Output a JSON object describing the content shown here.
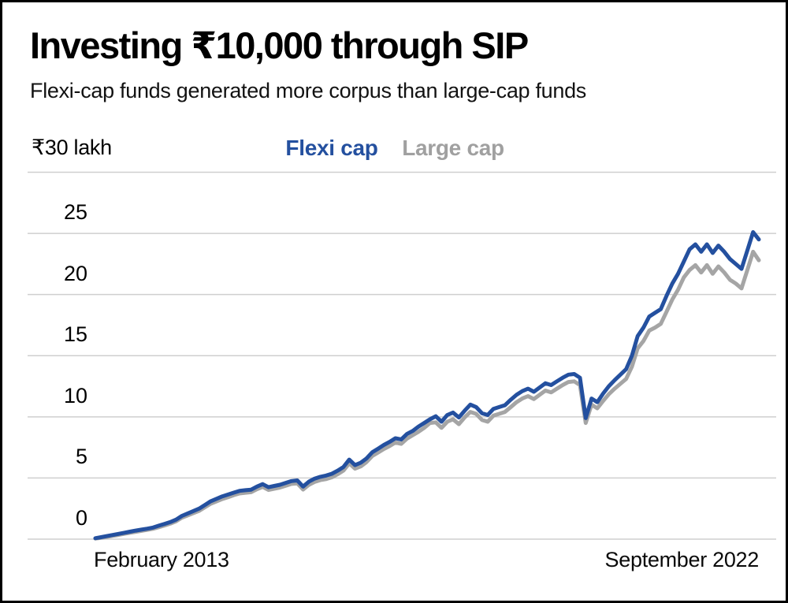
{
  "header": {
    "title": "Investing ₹10,000 through SIP",
    "subtitle": "Flexi-cap funds generated more corpus than large-cap funds"
  },
  "y_axis": {
    "max_label": "₹30 lakh",
    "tick_labels": [
      "25",
      "20",
      "15",
      "10",
      "5",
      "0"
    ]
  },
  "x_axis": {
    "start_label": "February 2013",
    "end_label": "September 2022"
  },
  "legend": {
    "items": [
      {
        "label": "Flexi cap",
        "color": "#24509f"
      },
      {
        "label": "Large cap",
        "color": "#a0a0a0"
      }
    ]
  },
  "colors": {
    "flexi_line": "#24509f",
    "large_line": "#a5a5a5",
    "grid": "#cfcfcf",
    "text": "#000000",
    "border": "#000000"
  },
  "chart_data": {
    "type": "line",
    "title": "Investing ₹10,000 through SIP",
    "subtitle": "Flexi-cap funds generated more corpus than large-cap funds",
    "x_unit": "month",
    "x_range": [
      "2013-02",
      "2022-09"
    ],
    "x_tick_labels": [
      "February 2013",
      "September 2022"
    ],
    "ylabel": "₹ lakh",
    "ylim": [
      0,
      30
    ],
    "y_ticks": [
      0,
      5,
      10,
      15,
      20,
      25,
      30
    ],
    "grid": "horizontal",
    "legend_position": "top",
    "series": [
      {
        "name": "Flexi cap",
        "color": "#24509f",
        "values": [
          0.08,
          0.16,
          0.25,
          0.34,
          0.43,
          0.52,
          0.61,
          0.7,
          0.78,
          0.86,
          0.95,
          1.1,
          1.25,
          1.4,
          1.6,
          1.9,
          2.1,
          2.3,
          2.5,
          2.8,
          3.1,
          3.3,
          3.5,
          3.65,
          3.8,
          3.95,
          4.0,
          4.05,
          4.3,
          4.5,
          4.25,
          4.35,
          4.45,
          4.6,
          4.75,
          4.8,
          4.3,
          4.7,
          4.95,
          5.1,
          5.2,
          5.35,
          5.6,
          5.9,
          6.5,
          6.05,
          6.25,
          6.6,
          7.1,
          7.4,
          7.7,
          7.95,
          8.25,
          8.15,
          8.6,
          8.85,
          9.2,
          9.5,
          9.8,
          10.05,
          9.6,
          10.15,
          10.35,
          9.95,
          10.5,
          11.0,
          10.8,
          10.3,
          10.15,
          10.65,
          10.8,
          10.95,
          11.4,
          11.8,
          12.1,
          12.3,
          12.05,
          12.4,
          12.75,
          12.6,
          12.9,
          13.2,
          13.45,
          13.5,
          13.2,
          9.9,
          11.5,
          11.2,
          11.9,
          12.5,
          13.0,
          13.45,
          13.9,
          15.0,
          16.6,
          17.3,
          18.2,
          18.5,
          18.8,
          19.9,
          20.9,
          21.7,
          22.7,
          23.7,
          24.1,
          23.5,
          24.1,
          23.4,
          24.0,
          23.5,
          22.9,
          22.5,
          22.1,
          23.6,
          25.1,
          24.5
        ]
      },
      {
        "name": "Large cap",
        "color": "#a5a5a5",
        "values": [
          0.05,
          0.11,
          0.19,
          0.27,
          0.35,
          0.44,
          0.52,
          0.6,
          0.68,
          0.76,
          0.85,
          0.98,
          1.12,
          1.27,
          1.46,
          1.75,
          1.94,
          2.13,
          2.32,
          2.61,
          2.9,
          3.09,
          3.28,
          3.43,
          3.6,
          3.74,
          3.79,
          3.84,
          4.08,
          4.27,
          4.02,
          4.12,
          4.22,
          4.37,
          4.52,
          4.56,
          4.06,
          4.44,
          4.68,
          4.83,
          4.91,
          5.06,
          5.31,
          5.61,
          6.2,
          5.76,
          5.95,
          6.3,
          6.8,
          7.08,
          7.37,
          7.61,
          7.9,
          7.79,
          8.22,
          8.5,
          8.78,
          9.1,
          9.5,
          9.55,
          9.1,
          9.6,
          9.8,
          9.4,
          9.95,
          10.4,
          10.25,
          9.75,
          9.6,
          10.1,
          10.25,
          10.4,
          10.8,
          11.2,
          11.5,
          11.7,
          11.45,
          11.8,
          12.15,
          12.0,
          12.3,
          12.6,
          12.85,
          12.9,
          12.6,
          9.5,
          11.0,
          10.7,
          11.3,
          11.85,
          12.3,
          12.7,
          13.1,
          14.1,
          15.6,
          16.2,
          17.05,
          17.3,
          17.6,
          18.6,
          19.6,
          20.4,
          21.4,
          22.0,
          22.4,
          21.8,
          22.4,
          21.7,
          22.3,
          21.8,
          21.2,
          20.9,
          20.5,
          22.0,
          23.5,
          22.8
        ]
      }
    ]
  }
}
